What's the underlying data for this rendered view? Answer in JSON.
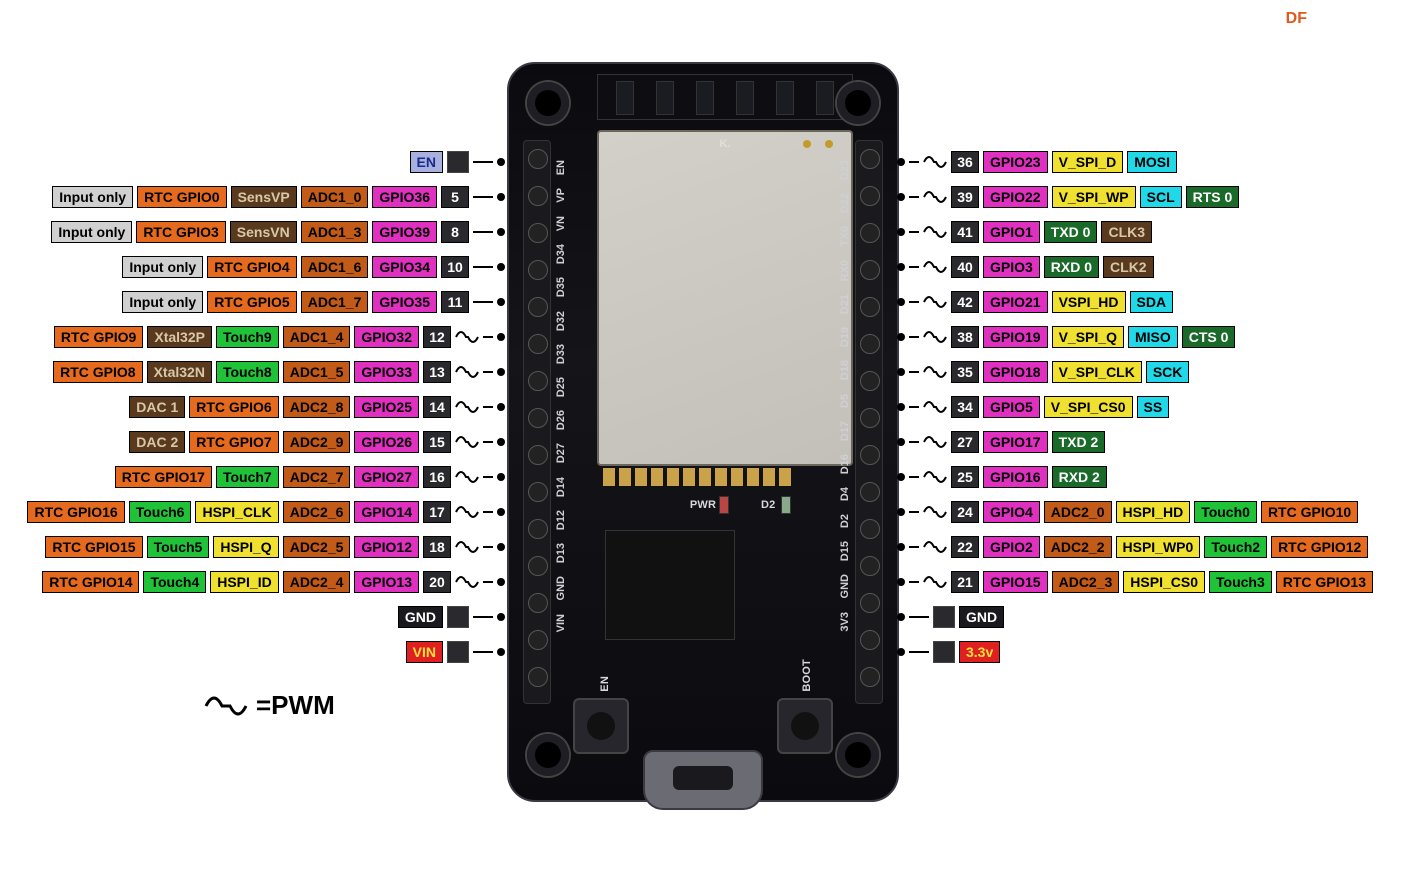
{
  "brand": "DF",
  "legend": {
    "text": "=PWM"
  },
  "board": {
    "marking_k": "K.",
    "silk_pwr": "PWR",
    "silk_d2": "D2",
    "silk_en": "EN",
    "silk_boot": "BOOT",
    "left_silk": [
      "EN",
      "VP",
      "VN",
      "D34",
      "D35",
      "D32",
      "D33",
      "D25",
      "D26",
      "D27",
      "D14",
      "D12",
      "D13",
      "GND",
      "VIN"
    ],
    "right_silk": [
      "D23",
      "D22",
      "TX0",
      "RX0",
      "D21",
      "D19",
      "D18",
      "D5",
      "D17",
      "D16",
      "D4",
      "D2",
      "D15",
      "GND",
      "3V3"
    ]
  },
  "colors": {
    "gray": "#d0d0d0",
    "orange": "#e66a1e",
    "brown": "#5a3a1e",
    "dkor": "#c25a18",
    "mag": "#e030c0",
    "numd": "#2a2a2e",
    "blueen": "#a8b0e0",
    "green": "#20c238",
    "dgreen": "#1a6a2a",
    "yellow": "#f0e030",
    "cyan": "#20d8e8",
    "red": "#e02020",
    "blk": "#1a1a1e"
  },
  "row_y_start": 150,
  "row_y_step": 35,
  "left_rows": [
    {
      "num": null,
      "pwm": false,
      "labels": [
        {
          "t": "EN",
          "c": "blueen"
        }
      ],
      "boxAfterNum": true
    },
    {
      "num": "5",
      "pwm": false,
      "labels": [
        {
          "t": "Input only",
          "c": "gray"
        },
        {
          "t": "RTC GPIO0",
          "c": "orange"
        },
        {
          "t": "SensVP",
          "c": "brown"
        },
        {
          "t": "ADC1_0",
          "c": "dkor"
        },
        {
          "t": "GPIO36",
          "c": "mag"
        }
      ]
    },
    {
      "num": "8",
      "pwm": false,
      "labels": [
        {
          "t": "Input only",
          "c": "gray"
        },
        {
          "t": "RTC GPIO3",
          "c": "orange"
        },
        {
          "t": "SensVN",
          "c": "brown"
        },
        {
          "t": "ADC1_3",
          "c": "dkor"
        },
        {
          "t": "GPIO39",
          "c": "mag"
        }
      ]
    },
    {
      "num": "10",
      "pwm": false,
      "labels": [
        {
          "t": "Input only",
          "c": "gray"
        },
        {
          "t": "RTC GPIO4",
          "c": "orange"
        },
        {
          "t": "ADC1_6",
          "c": "dkor"
        },
        {
          "t": "GPIO34",
          "c": "mag"
        }
      ]
    },
    {
      "num": "11",
      "pwm": false,
      "labels": [
        {
          "t": "Input only",
          "c": "gray"
        },
        {
          "t": "RTC GPIO5",
          "c": "orange"
        },
        {
          "t": "ADC1_7",
          "c": "dkor"
        },
        {
          "t": "GPIO35",
          "c": "mag"
        }
      ]
    },
    {
      "num": "12",
      "pwm": true,
      "labels": [
        {
          "t": "RTC GPIO9",
          "c": "orange"
        },
        {
          "t": "Xtal32P",
          "c": "brown"
        },
        {
          "t": "Touch9",
          "c": "green"
        },
        {
          "t": "ADC1_4",
          "c": "dkor"
        },
        {
          "t": "GPIO32",
          "c": "mag"
        }
      ]
    },
    {
      "num": "13",
      "pwm": true,
      "labels": [
        {
          "t": "RTC GPIO8",
          "c": "orange"
        },
        {
          "t": "Xtal32N",
          "c": "brown"
        },
        {
          "t": "Touch8",
          "c": "green"
        },
        {
          "t": "ADC1_5",
          "c": "dkor"
        },
        {
          "t": "GPIO33",
          "c": "mag"
        }
      ]
    },
    {
      "num": "14",
      "pwm": true,
      "labels": [
        {
          "t": "DAC 1",
          "c": "brown"
        },
        {
          "t": "RTC GPIO6",
          "c": "orange"
        },
        {
          "t": "ADC2_8",
          "c": "dkor"
        },
        {
          "t": "GPIO25",
          "c": "mag"
        }
      ]
    },
    {
      "num": "15",
      "pwm": true,
      "labels": [
        {
          "t": "DAC 2",
          "c": "brown"
        },
        {
          "t": "RTC GPIO7",
          "c": "orange"
        },
        {
          "t": "ADC2_9",
          "c": "dkor"
        },
        {
          "t": "GPIO26",
          "c": "mag"
        }
      ]
    },
    {
      "num": "16",
      "pwm": true,
      "labels": [
        {
          "t": "RTC GPIO17",
          "c": "orange"
        },
        {
          "t": "Touch7",
          "c": "green"
        },
        {
          "t": "ADC2_7",
          "c": "dkor"
        },
        {
          "t": "GPIO27",
          "c": "mag"
        }
      ]
    },
    {
      "num": "17",
      "pwm": true,
      "labels": [
        {
          "t": "RTC GPIO16",
          "c": "orange"
        },
        {
          "t": "Touch6",
          "c": "green"
        },
        {
          "t": "HSPI_CLK",
          "c": "yellow"
        },
        {
          "t": "ADC2_6",
          "c": "dkor"
        },
        {
          "t": "GPIO14",
          "c": "mag"
        }
      ]
    },
    {
      "num": "18",
      "pwm": true,
      "labels": [
        {
          "t": "RTC GPIO15",
          "c": "orange"
        },
        {
          "t": "Touch5",
          "c": "green"
        },
        {
          "t": "HSPI_Q",
          "c": "yellow"
        },
        {
          "t": "ADC2_5",
          "c": "dkor"
        },
        {
          "t": "GPIO12",
          "c": "mag"
        }
      ]
    },
    {
      "num": "20",
      "pwm": true,
      "labels": [
        {
          "t": "RTC GPIO14",
          "c": "orange"
        },
        {
          "t": "Touch4",
          "c": "green"
        },
        {
          "t": "HSPI_ID",
          "c": "yellow"
        },
        {
          "t": "ADC2_4",
          "c": "dkor"
        },
        {
          "t": "GPIO13",
          "c": "mag"
        }
      ]
    },
    {
      "num": null,
      "pwm": false,
      "labels": [
        {
          "t": "GND",
          "c": "blk"
        }
      ],
      "boxAfterNum": true
    },
    {
      "num": null,
      "pwm": false,
      "labels": [
        {
          "t": "VIN",
          "c": "redtxt"
        }
      ],
      "boxAfterNum": true
    }
  ],
  "right_rows": [
    {
      "num": "36",
      "pwm": true,
      "labels": [
        {
          "t": "GPIO23",
          "c": "mag"
        },
        {
          "t": "V_SPI_D",
          "c": "yellow"
        },
        {
          "t": "MOSI",
          "c": "cyan"
        }
      ]
    },
    {
      "num": "39",
      "pwm": true,
      "labels": [
        {
          "t": "GPIO22",
          "c": "mag"
        },
        {
          "t": "V_SPI_WP",
          "c": "yellow"
        },
        {
          "t": "SCL",
          "c": "cyan"
        },
        {
          "t": "RTS 0",
          "c": "dgreen"
        }
      ]
    },
    {
      "num": "41",
      "pwm": true,
      "labels": [
        {
          "t": "GPIO1",
          "c": "mag"
        },
        {
          "t": "TXD 0",
          "c": "dgreen"
        },
        {
          "t": "CLK3",
          "c": "brown"
        }
      ]
    },
    {
      "num": "40",
      "pwm": true,
      "labels": [
        {
          "t": "GPIO3",
          "c": "mag"
        },
        {
          "t": "RXD 0",
          "c": "dgreen"
        },
        {
          "t": "CLK2",
          "c": "brown"
        }
      ]
    },
    {
      "num": "42",
      "pwm": true,
      "labels": [
        {
          "t": "GPIO21",
          "c": "mag"
        },
        {
          "t": "VSPI_HD",
          "c": "yellow"
        },
        {
          "t": "SDA",
          "c": "cyan"
        }
      ]
    },
    {
      "num": "38",
      "pwm": true,
      "labels": [
        {
          "t": "GPIO19",
          "c": "mag"
        },
        {
          "t": "V_SPI_Q",
          "c": "yellow"
        },
        {
          "t": "MISO",
          "c": "cyan"
        },
        {
          "t": "CTS 0",
          "c": "dgreen"
        }
      ]
    },
    {
      "num": "35",
      "pwm": true,
      "labels": [
        {
          "t": "GPIO18",
          "c": "mag"
        },
        {
          "t": "V_SPI_CLK",
          "c": "yellow"
        },
        {
          "t": "SCK",
          "c": "cyan"
        }
      ]
    },
    {
      "num": "34",
      "pwm": true,
      "labels": [
        {
          "t": "GPIO5",
          "c": "mag"
        },
        {
          "t": "V_SPI_CS0",
          "c": "yellow"
        },
        {
          "t": "SS",
          "c": "cyan"
        }
      ]
    },
    {
      "num": "27",
      "pwm": true,
      "labels": [
        {
          "t": "GPIO17",
          "c": "mag"
        },
        {
          "t": "TXD 2",
          "c": "dgreen"
        }
      ]
    },
    {
      "num": "25",
      "pwm": true,
      "labels": [
        {
          "t": "GPIO16",
          "c": "mag"
        },
        {
          "t": "RXD 2",
          "c": "dgreen"
        }
      ]
    },
    {
      "num": "24",
      "pwm": true,
      "labels": [
        {
          "t": "GPIO4",
          "c": "mag"
        },
        {
          "t": "ADC2_0",
          "c": "dkor"
        },
        {
          "t": "HSPI_HD",
          "c": "yellow"
        },
        {
          "t": "Touch0",
          "c": "green"
        },
        {
          "t": "RTC GPIO10",
          "c": "orange"
        }
      ]
    },
    {
      "num": "22",
      "pwm": true,
      "labels": [
        {
          "t": "GPIO2",
          "c": "mag"
        },
        {
          "t": "ADC2_2",
          "c": "dkor"
        },
        {
          "t": "HSPI_WP0",
          "c": "yellow"
        },
        {
          "t": "Touch2",
          "c": "green"
        },
        {
          "t": "RTC GPIO12",
          "c": "orange"
        }
      ]
    },
    {
      "num": "21",
      "pwm": true,
      "labels": [
        {
          "t": "GPIO15",
          "c": "mag"
        },
        {
          "t": "ADC2_3",
          "c": "dkor"
        },
        {
          "t": "HSPI_CS0",
          "c": "yellow"
        },
        {
          "t": "Touch3",
          "c": "green"
        },
        {
          "t": "RTC GPIO13",
          "c": "orange"
        }
      ]
    },
    {
      "num": null,
      "pwm": false,
      "labels": [
        {
          "t": "GND",
          "c": "blk"
        }
      ],
      "boxBeforeNum": true
    },
    {
      "num": null,
      "pwm": false,
      "labels": [
        {
          "t": "3.3v",
          "c": "redtxt"
        }
      ],
      "boxBeforeNum": true
    }
  ]
}
